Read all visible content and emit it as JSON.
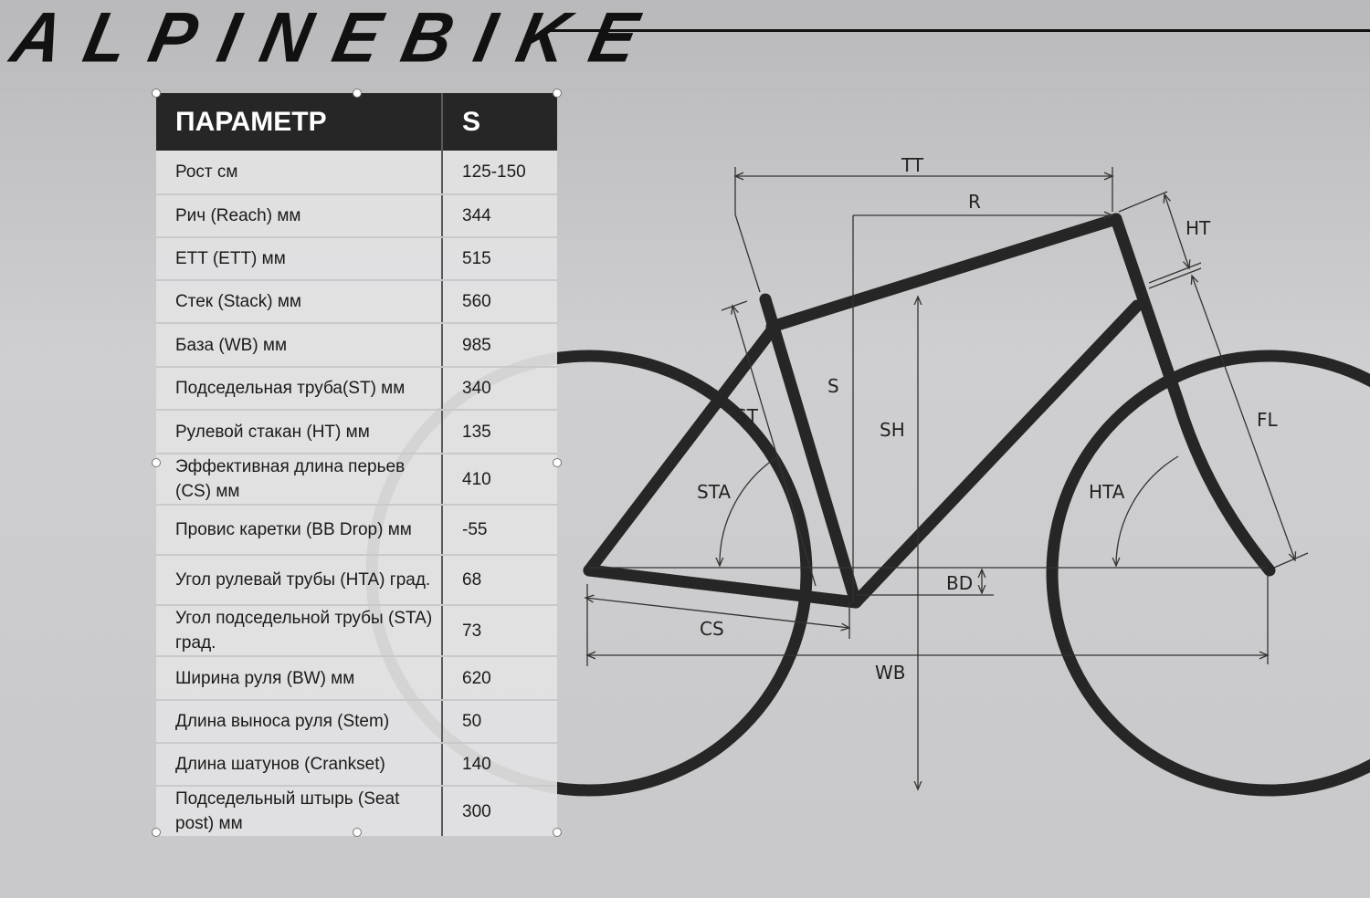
{
  "brand": {
    "logo_text": "ALPINEBIKE"
  },
  "table": {
    "headers": [
      "ПАРАМЕТР",
      "S"
    ],
    "rows": [
      {
        "param": "Рост см",
        "value": "125-150"
      },
      {
        "param": "Рич (Reach) мм",
        "value": "344"
      },
      {
        "param": "ETT (ETT) мм",
        "value": "515"
      },
      {
        "param": "Стек (Stack) мм",
        "value": "560"
      },
      {
        "param": "База (WB) мм",
        "value": "985"
      },
      {
        "param": "Подседельная труба(ST) мм",
        "value": "340"
      },
      {
        "param": "Рулевой стакан (HT) мм",
        "value": "135"
      },
      {
        "param": "Эффективная длина перьев (CS) мм",
        "value": "410"
      },
      {
        "param": "Провис каретки (BB Drop) мм",
        "value": "-55"
      },
      {
        "param": "Угол рулевай трубы (HTA) град.",
        "value": "68"
      },
      {
        "param": "Угол подседельной трубы (STA) град.",
        "value": "73"
      },
      {
        "param": "Ширина руля (BW) мм",
        "value": "620"
      },
      {
        "param": "Длина выноса руля (Stem)",
        "value": "50"
      },
      {
        "param": "Длина шатунов (Crankset)",
        "value": "140"
      },
      {
        "param": "Подседельный штырь (Seat post) мм",
        "value": "300"
      }
    ]
  },
  "diagram": {
    "labels": {
      "tt": "TT",
      "r": "R",
      "ht": "HT",
      "s": "S",
      "sh": "SH",
      "st": "ST",
      "fl": "FL",
      "sta": "STA",
      "hta": "HTA",
      "bd": "BD",
      "cs": "CS",
      "wb": "WB"
    },
    "frame_color": "#262626"
  }
}
